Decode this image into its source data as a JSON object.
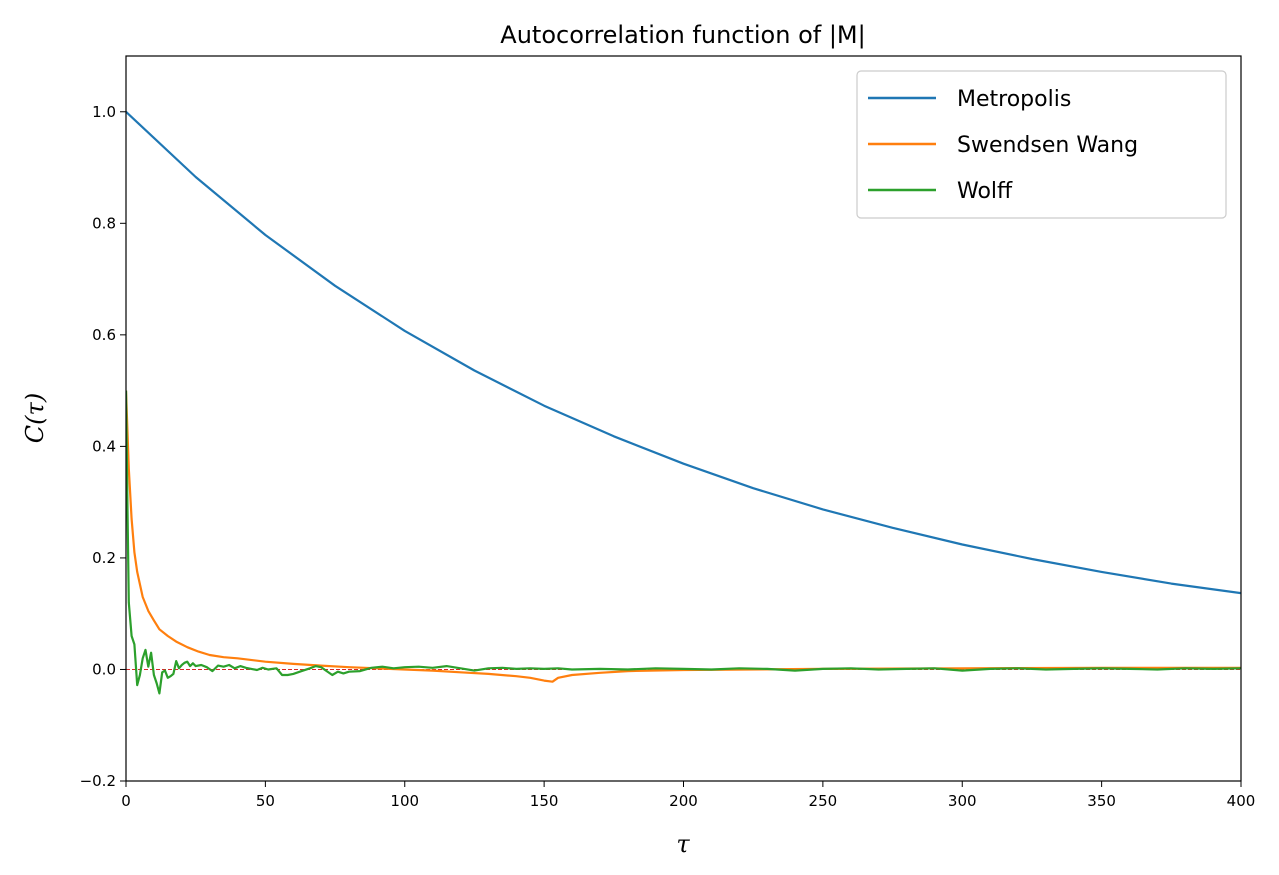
{
  "chart_data": {
    "type": "line",
    "title": "Autocorrelation function of |M|",
    "xlabel": "τ",
    "ylabel": "C(τ)",
    "xlim": [
      0,
      400
    ],
    "ylim": [
      -0.2,
      1.1
    ],
    "xticks": [
      0,
      50,
      100,
      150,
      200,
      250,
      300,
      350,
      400
    ],
    "yticks": [
      -0.2,
      0.0,
      0.2,
      0.4,
      0.6,
      0.8,
      1.0
    ],
    "ytick_labels": [
      "−0.2",
      "0.0",
      "0.2",
      "0.4",
      "0.6",
      "0.8",
      "1.0"
    ],
    "grid": false,
    "legend": "top-right",
    "reference_line": {
      "y": 0,
      "style": "dashed",
      "color": "#d62728"
    },
    "series": [
      {
        "name": "Metropolis",
        "color": "#1f77b4",
        "x": [
          0,
          25,
          50,
          75,
          100,
          125,
          150,
          175,
          200,
          225,
          250,
          275,
          300,
          325,
          350,
          375,
          400
        ],
        "y": [
          1.0,
          0.883,
          0.779,
          0.688,
          0.607,
          0.536,
          0.473,
          0.418,
          0.369,
          0.325,
          0.287,
          0.254,
          0.224,
          0.198,
          0.175,
          0.154,
          0.137
        ]
      },
      {
        "name": "Swendsen Wang",
        "color": "#ff7f0e",
        "x": [
          0,
          1,
          2,
          3,
          4,
          6,
          8,
          10,
          12,
          15,
          18,
          22,
          26,
          30,
          35,
          40,
          50,
          60,
          70,
          80,
          90,
          100,
          110,
          120,
          130,
          140,
          145,
          150,
          153,
          155,
          160,
          170,
          180,
          200,
          250,
          300,
          350,
          400
        ],
        "y": [
          0.5,
          0.36,
          0.27,
          0.21,
          0.175,
          0.13,
          0.105,
          0.088,
          0.072,
          0.06,
          0.05,
          0.04,
          0.032,
          0.026,
          0.022,
          0.02,
          0.014,
          0.01,
          0.007,
          0.004,
          0.002,
          0.0,
          -0.002,
          -0.005,
          -0.008,
          -0.012,
          -0.015,
          -0.02,
          -0.022,
          -0.015,
          -0.01,
          -0.006,
          -0.003,
          -0.001,
          0.001,
          0.002,
          0.003,
          0.003
        ]
      },
      {
        "name": "Wolff",
        "color": "#2ca02c",
        "x": [
          0,
          0.5,
          1,
          2,
          3,
          4,
          5,
          6,
          7,
          8,
          9,
          10,
          11,
          12,
          13,
          14,
          15,
          16,
          17,
          18,
          19,
          20,
          21,
          22,
          23,
          24,
          25,
          27,
          29,
          31,
          33,
          35,
          37,
          39,
          41,
          43,
          45,
          47,
          49,
          51,
          54,
          56,
          58,
          60,
          63,
          66,
          68,
          70,
          72,
          74,
          76,
          78,
          80,
          84,
          88,
          92,
          96,
          100,
          105,
          110,
          115,
          120,
          125,
          130,
          135,
          140,
          145,
          150,
          155,
          160,
          170,
          180,
          190,
          200,
          210,
          220,
          230,
          240,
          250,
          260,
          270,
          280,
          290,
          300,
          310,
          320,
          330,
          340,
          350,
          360,
          370,
          380,
          390,
          400
        ],
        "y": [
          0.5,
          0.3,
          0.12,
          0.06,
          0.045,
          -0.028,
          -0.01,
          0.02,
          0.035,
          0.005,
          0.03,
          -0.01,
          -0.025,
          -0.043,
          -0.005,
          -0.002,
          -0.015,
          -0.012,
          -0.008,
          0.015,
          0.002,
          0.008,
          0.012,
          0.014,
          0.006,
          0.011,
          0.006,
          0.008,
          0.004,
          -0.003,
          0.007,
          0.005,
          0.008,
          0.002,
          0.006,
          0.003,
          0.001,
          -0.001,
          0.003,
          0.0,
          0.002,
          -0.01,
          -0.01,
          -0.008,
          -0.003,
          0.002,
          0.006,
          0.004,
          -0.003,
          -0.01,
          -0.004,
          -0.007,
          -0.004,
          -0.003,
          0.003,
          0.005,
          0.002,
          0.004,
          0.005,
          0.003,
          0.006,
          0.002,
          -0.002,
          0.002,
          0.003,
          0.001,
          0.002,
          0.001,
          0.002,
          0.0,
          0.001,
          0.0,
          0.002,
          0.001,
          0.0,
          0.002,
          0.001,
          -0.002,
          0.001,
          0.002,
          0.0,
          0.001,
          0.002,
          -0.002,
          0.001,
          0.002,
          0.0,
          0.001,
          0.002,
          0.001,
          0.0,
          0.002,
          0.001,
          0.002
        ]
      }
    ]
  }
}
